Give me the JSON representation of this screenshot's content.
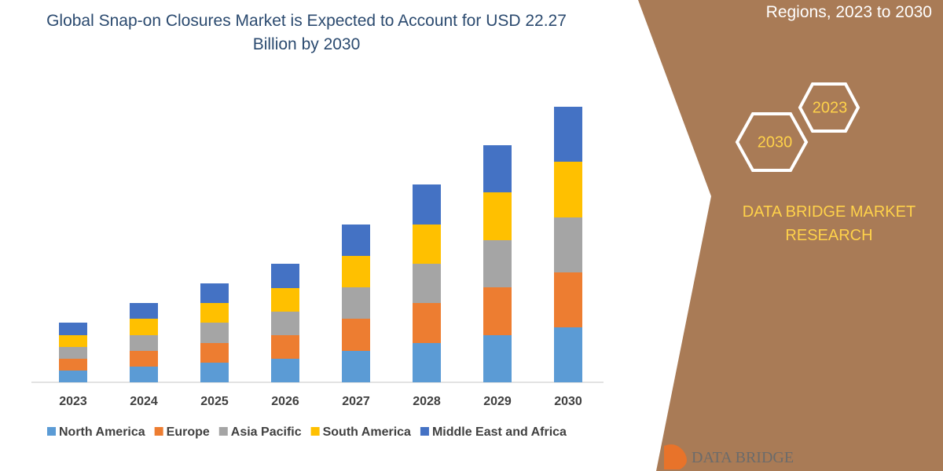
{
  "chart_data": {
    "type": "stacked_bar",
    "title": "Global Snap-on Closures Market is Expected to Account for USD 22.27 Billion by 2030",
    "categories": [
      "2023",
      "2024",
      "2025",
      "2026",
      "2027",
      "2028",
      "2029",
      "2030"
    ],
    "series": [
      {
        "name": "North America",
        "color": "#5b9bd5",
        "values": [
          15,
          20,
          25,
          30,
          40,
          50,
          60,
          70
        ]
      },
      {
        "name": "Europe",
        "color": "#ed7d31",
        "values": [
          15,
          20,
          25,
          30,
          41,
          51,
          61,
          70
        ]
      },
      {
        "name": "Asia Pacific",
        "color": "#a5a5a5",
        "values": [
          15,
          20,
          26,
          30,
          40,
          50,
          60,
          70
        ]
      },
      {
        "name": "South America",
        "color": "#ffc000",
        "values": [
          15,
          21,
          25,
          30,
          40,
          50,
          61,
          71
        ]
      },
      {
        "name": "Middle East and Africa",
        "color": "#4472c4",
        "values": [
          16,
          20,
          25,
          31,
          40,
          51,
          60,
          70
        ]
      }
    ]
  },
  "panel": {
    "subtitle": "Regions, 2023 to 2030",
    "hex": [
      "2023",
      "2030"
    ],
    "brand": "DATA BRIDGE MARKET RESEARCH",
    "logo": "DATA BRIDGE"
  }
}
